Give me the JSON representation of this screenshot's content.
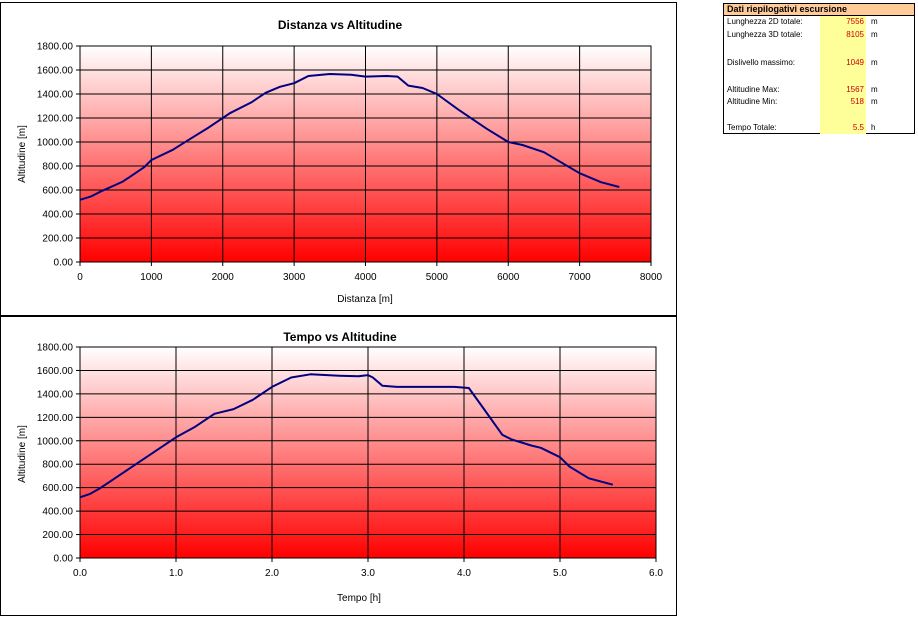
{
  "charts": [
    {
      "title": "Distanza vs Altitudine",
      "xlabel": "Distanza [m]",
      "ylabel": "Altitudine [m]",
      "x_ticks": [
        "0",
        "1000",
        "2000",
        "3000",
        "4000",
        "5000",
        "6000",
        "7000",
        "8000"
      ],
      "y_ticks": [
        "0.00",
        "200.00",
        "400.00",
        "600.00",
        "800.00",
        "1000.00",
        "1200.00",
        "1400.00",
        "1600.00",
        "1800.00"
      ]
    },
    {
      "title": "Tempo vs Altitudine",
      "xlabel": "Tempo [h]",
      "ylabel": "Altitudine [m]",
      "x_ticks": [
        "0.0",
        "1.0",
        "2.0",
        "3.0",
        "4.0",
        "5.0",
        "6.0"
      ],
      "y_ticks": [
        "0.00",
        "200.00",
        "400.00",
        "600.00",
        "800.00",
        "1000.00",
        "1200.00",
        "1400.00",
        "1600.00",
        "1800.00"
      ]
    }
  ],
  "chart_data": [
    {
      "type": "line",
      "title": "Distanza vs Altitudine",
      "xlabel": "Distanza [m]",
      "ylabel": "Altitudine [m]",
      "xlim": [
        0,
        8000
      ],
      "ylim": [
        0,
        1800
      ],
      "grid": true,
      "series": [
        {
          "color": "#000080",
          "x": [
            0,
            150,
            300,
            600,
            900,
            1000,
            1300,
            1500,
            1800,
            2100,
            2400,
            2600,
            2800,
            3000,
            3200,
            3500,
            3800,
            4000,
            4300,
            4450,
            4600,
            4800,
            5000,
            5300,
            5700,
            6000,
            6200,
            6500,
            6800,
            7000,
            7300,
            7556
          ],
          "y": [
            518,
            545,
            590,
            670,
            790,
            850,
            935,
            1010,
            1120,
            1240,
            1330,
            1410,
            1460,
            1490,
            1550,
            1567,
            1560,
            1545,
            1550,
            1545,
            1470,
            1450,
            1400,
            1270,
            1110,
            1000,
            975,
            915,
            810,
            740,
            665,
            625
          ]
        }
      ]
    },
    {
      "type": "line",
      "title": "Tempo vs Altitudine",
      "xlabel": "Tempo [h]",
      "ylabel": "Altitudine [m]",
      "xlim": [
        0,
        6
      ],
      "ylim": [
        0,
        1800
      ],
      "grid": true,
      "series": [
        {
          "color": "#000080",
          "x": [
            0,
            0.1,
            0.2,
            0.4,
            0.6,
            0.8,
            1.0,
            1.2,
            1.4,
            1.6,
            1.8,
            2.0,
            2.2,
            2.4,
            2.7,
            2.9,
            3.0,
            3.05,
            3.15,
            3.3,
            3.6,
            3.9,
            4.05,
            4.2,
            4.4,
            4.5,
            4.7,
            4.8,
            5.0,
            5.1,
            5.3,
            5.55
          ],
          "y": [
            518,
            545,
            590,
            700,
            810,
            920,
            1030,
            1120,
            1230,
            1270,
            1350,
            1460,
            1540,
            1567,
            1555,
            1550,
            1560,
            1540,
            1470,
            1460,
            1460,
            1460,
            1450,
            1280,
            1050,
            1010,
            960,
            940,
            860,
            780,
            680,
            625
          ]
        }
      ]
    }
  ],
  "summary": {
    "title": "Dati riepilogativi escursione",
    "rows": [
      {
        "label": "Lunghezza 2D totale:",
        "value": "7556",
        "unit": "m"
      },
      {
        "label": "Lunghezza 3D totale:",
        "value": "8105",
        "unit": "m"
      },
      {
        "label": "Dislivello massimo:",
        "value": "1049",
        "unit": "m"
      },
      {
        "label": "Altitudine Max:",
        "value": "1567",
        "unit": "m"
      },
      {
        "label": "Altitudine Min:",
        "value": "518",
        "unit": "m"
      },
      {
        "label": "Tempo Totale:",
        "value": "5.5",
        "unit": "h"
      }
    ]
  }
}
